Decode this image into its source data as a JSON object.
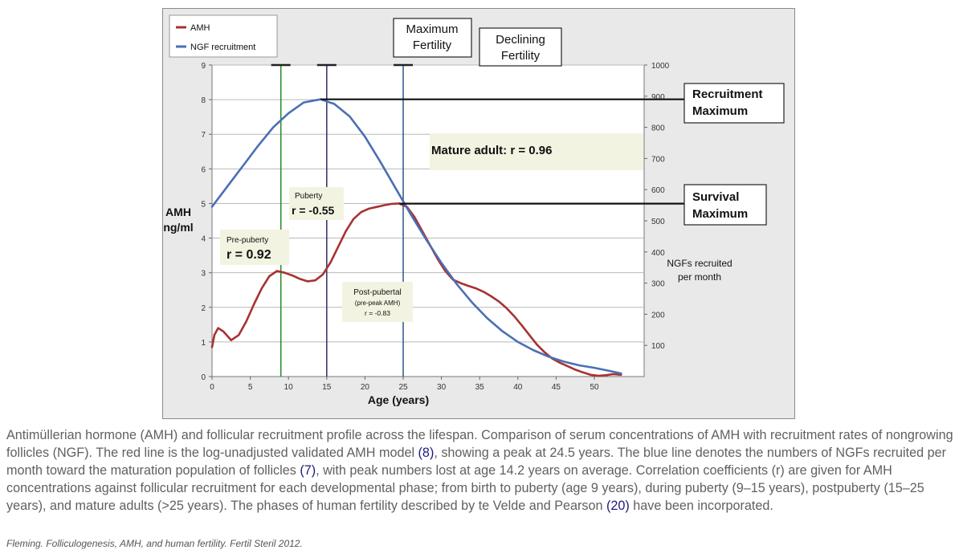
{
  "chart_data": {
    "type": "line",
    "xlabel": "Age (years)",
    "ylabel_left": [
      "AMH",
      "ng/ml"
    ],
    "ylabel_right": [
      "NGFs recruited",
      "per month"
    ],
    "xlim": [
      0,
      55
    ],
    "x_ticks": [
      0,
      5,
      10,
      15,
      20,
      25,
      30,
      35,
      40,
      45,
      50
    ],
    "ylim_left": [
      0,
      9
    ],
    "y_ticks_left": [
      0,
      1,
      2,
      3,
      4,
      5,
      6,
      7,
      8,
      9
    ],
    "ylim_right": [
      0,
      1000
    ],
    "y_ticks_right": [
      100,
      200,
      300,
      400,
      500,
      600,
      700,
      800,
      900,
      1000
    ],
    "grid": "horizontal",
    "legend_position": "top-left",
    "series": [
      {
        "name": "AMH",
        "color": "#a83232",
        "axis": "left",
        "x": [
          0,
          0.3,
          0.8,
          1.5,
          2.5,
          3.5,
          4.5,
          5.5,
          6.5,
          7.5,
          8.5,
          9.5,
          10.5,
          11.5,
          12.5,
          13.5,
          14.5,
          15.5,
          16.5,
          17.5,
          18.5,
          19.5,
          20.5,
          21.5,
          22.5,
          23.5,
          24.5,
          25.5,
          26.5,
          27.5,
          28.5,
          29.5,
          30.5,
          31.5,
          32.5,
          33.5,
          34.5,
          35.5,
          36.5,
          37.5,
          38.5,
          39.5,
          40.5,
          41.5,
          42.5,
          43.5,
          44.5,
          45.5,
          46.5,
          47.5,
          48.5,
          49.5,
          50.5,
          51.5,
          52.5,
          53.5
        ],
        "y": [
          0.85,
          1.2,
          1.4,
          1.3,
          1.05,
          1.2,
          1.6,
          2.1,
          2.55,
          2.9,
          3.05,
          3.0,
          2.92,
          2.82,
          2.75,
          2.78,
          2.95,
          3.3,
          3.75,
          4.2,
          4.55,
          4.75,
          4.85,
          4.9,
          4.95,
          4.99,
          5.0,
          4.9,
          4.6,
          4.2,
          3.8,
          3.4,
          3.05,
          2.8,
          2.7,
          2.62,
          2.55,
          2.45,
          2.32,
          2.17,
          1.98,
          1.75,
          1.48,
          1.2,
          0.92,
          0.7,
          0.52,
          0.4,
          0.3,
          0.2,
          0.12,
          0.05,
          0.02,
          0.04,
          0.07,
          0.05
        ]
      },
      {
        "name": "NGF recruitment",
        "color": "#4a6fb5",
        "axis": "right",
        "x": [
          0,
          2,
          4,
          6,
          8,
          10,
          12,
          14.2,
          16,
          18,
          20,
          22,
          24,
          26,
          28,
          30,
          32,
          34,
          36,
          38,
          40,
          42,
          44,
          46,
          48,
          50,
          52,
          53.5
        ],
        "y": [
          545,
          610,
          675,
          740,
          800,
          845,
          880,
          890,
          875,
          835,
          770,
          690,
          605,
          520,
          440,
          365,
          297,
          238,
          187,
          145,
          111,
          85,
          64,
          48,
          36,
          28,
          18,
          10
        ]
      }
    ],
    "vlines": [
      {
        "x": 9,
        "color": "#2e8b2e"
      },
      {
        "x": 15,
        "color": "#3b3b6e"
      },
      {
        "x": 25,
        "color": "#3b5f8f"
      }
    ],
    "hlines": [
      {
        "from_x": 14.2,
        "y_right": 890,
        "label": [
          "Recruitment",
          "Maximum"
        ]
      },
      {
        "from_x": 24.5,
        "y_right": 555,
        "label": [
          "Survival",
          "Maximum"
        ]
      }
    ],
    "phase_labels": [
      [
        "Maximum",
        "Fertility"
      ],
      [
        "Declining",
        "Fertility"
      ]
    ],
    "annotations": {
      "prepuberty": [
        "Pre-puberty",
        "r = 0.92"
      ],
      "puberty": [
        "Puberty",
        "r = -0.55"
      ],
      "postpubertal": [
        "Post-pubertal",
        "(pre-peak AMH)",
        "r = -0.83"
      ],
      "mature": "Mature adult: r = 0.96"
    }
  },
  "caption": {
    "p1": "Antimüllerian hormone (AMH) and follicular recruitment profile across the lifespan. Comparison of serum concentrations of AMH with recruitment rates of nongrowing follicles (NGF). The red line is the log-unadjusted validated AMH model ",
    "ref1": "(8)",
    "p2": ", showing a peak at 24.5 years. The blue line denotes the numbers of NGFs recruited per month toward the maturation population of follicles ",
    "ref2": "(7)",
    "p3": ", with peak numbers lost at age 14.2 years on average. Correlation coefficients (r) are given for AMH concentrations against follicular recruitment for each developmental phase; from birth to puberty (age 9 years), during puberty (9–15 years), postpuberty (15–25 years), and mature adults (>25 years). The phases of human fertility described by te Velde and Pearson ",
    "ref3": "(20)",
    "p4": " have been incorporated."
  },
  "citation": "Fleming. Folliculogenesis, AMH, and human fertility. Fertil Steril 2012."
}
